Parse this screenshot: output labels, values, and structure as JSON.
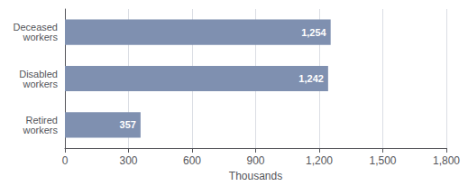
{
  "chart_data": {
    "type": "bar",
    "orientation": "horizontal",
    "categories": [
      "Deceased\nworkers",
      "Disabled\nworkers",
      "Retired\nworkers"
    ],
    "values": [
      1254,
      1242,
      357
    ],
    "value_labels": [
      "1,254",
      "1,242",
      "357"
    ],
    "data_labels": true,
    "color": "#7f90b0",
    "xlabel": "Thousands",
    "xlim": [
      0,
      1800
    ],
    "xticks": [
      0,
      300,
      600,
      900,
      {
        "value": 1200,
        "label": "1,200"
      },
      {
        "value": 1500,
        "label": "1,500"
      },
      {
        "value": 1800,
        "label": "1,800"
      }
    ],
    "grid": true
  }
}
